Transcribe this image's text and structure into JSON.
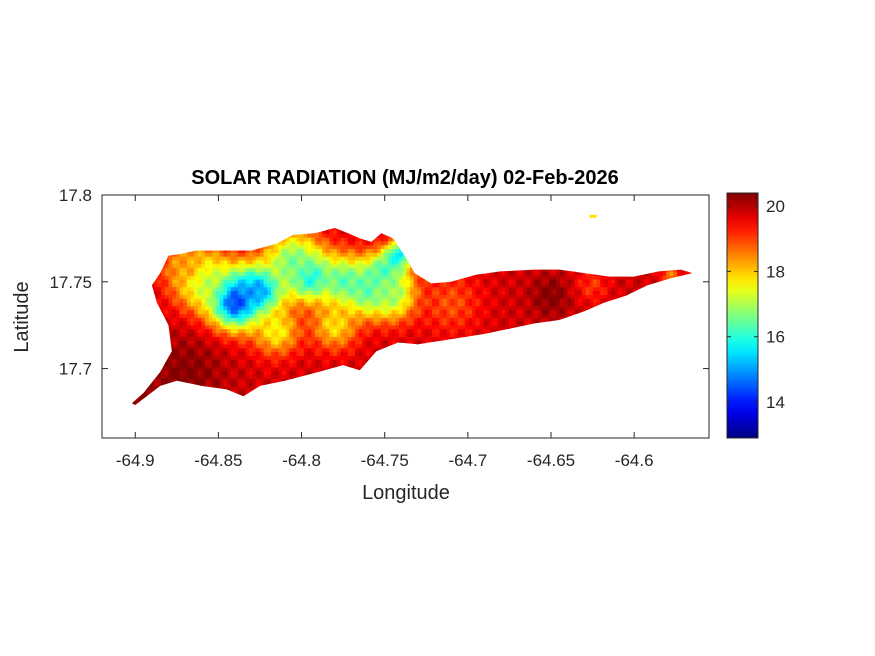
{
  "chart_data": {
    "type": "heatmap",
    "title": "SOLAR RADIATION (MJ/m2/day) 02-Feb-2026",
    "xlabel": "Longitude",
    "ylabel": "Latitude",
    "xlim": [
      -64.92,
      -64.555
    ],
    "ylim": [
      17.66,
      17.8
    ],
    "xticks": [
      -64.9,
      -64.85,
      -64.8,
      -64.75,
      -64.7,
      -64.65,
      -64.6
    ],
    "xtick_labels": [
      "-64.9",
      "-64.85",
      "-64.8",
      "-64.75",
      "-64.7",
      "-64.65",
      "-64.6"
    ],
    "yticks": [
      17.7,
      17.75,
      17.8
    ],
    "ytick_labels": [
      "17.7",
      "17.75",
      "17.8"
    ],
    "colorbar": {
      "colormap": "jet",
      "clim": [
        12.9,
        20.4
      ],
      "ticks": [
        14,
        16,
        18,
        20
      ],
      "tick_labels": [
        "14",
        "16",
        "18",
        "20"
      ]
    },
    "grid": false,
    "island_outline": [
      [
        -64.9,
        17.679
      ],
      [
        -64.885,
        17.69
      ],
      [
        -64.875,
        17.693
      ],
      [
        -64.86,
        17.69
      ],
      [
        -64.845,
        17.688
      ],
      [
        -64.835,
        17.684
      ],
      [
        -64.825,
        17.69
      ],
      [
        -64.81,
        17.693
      ],
      [
        -64.79,
        17.698
      ],
      [
        -64.775,
        17.702
      ],
      [
        -64.765,
        17.699
      ],
      [
        -64.755,
        17.71
      ],
      [
        -64.742,
        17.715
      ],
      [
        -64.73,
        17.714
      ],
      [
        -64.71,
        17.717
      ],
      [
        -64.69,
        17.72
      ],
      [
        -64.675,
        17.723
      ],
      [
        -64.66,
        17.726
      ],
      [
        -64.645,
        17.728
      ],
      [
        -64.63,
        17.733
      ],
      [
        -64.618,
        17.738
      ],
      [
        -64.605,
        17.742
      ],
      [
        -64.592,
        17.748
      ],
      [
        -64.578,
        17.752
      ],
      [
        -64.565,
        17.755
      ],
      [
        -64.572,
        17.757
      ],
      [
        -64.585,
        17.756
      ],
      [
        -64.6,
        17.753
      ],
      [
        -64.615,
        17.753
      ],
      [
        -64.63,
        17.755
      ],
      [
        -64.645,
        17.757
      ],
      [
        -64.66,
        17.757
      ],
      [
        -64.68,
        17.756
      ],
      [
        -64.695,
        17.754
      ],
      [
        -64.71,
        17.75
      ],
      [
        -64.722,
        17.749
      ],
      [
        -64.732,
        17.755
      ],
      [
        -64.738,
        17.765
      ],
      [
        -64.745,
        17.775
      ],
      [
        -64.752,
        17.778
      ],
      [
        -64.758,
        17.773
      ],
      [
        -64.765,
        17.775
      ],
      [
        -64.772,
        17.778
      ],
      [
        -64.78,
        17.781
      ],
      [
        -64.792,
        17.778
      ],
      [
        -64.805,
        17.777
      ],
      [
        -64.815,
        17.772
      ],
      [
        -64.83,
        17.768
      ],
      [
        -64.848,
        17.768
      ],
      [
        -64.863,
        17.768
      ],
      [
        -64.873,
        17.766
      ],
      [
        -64.88,
        17.765
      ],
      [
        -64.885,
        17.755
      ],
      [
        -64.89,
        17.748
      ],
      [
        -64.887,
        17.738
      ],
      [
        -64.88,
        17.725
      ],
      [
        -64.878,
        17.71
      ],
      [
        -64.885,
        17.698
      ],
      [
        -64.895,
        17.686
      ],
      [
        -64.902,
        17.68
      ]
    ],
    "field": {
      "base_value": 19.8,
      "features": [
        {
          "lon": -64.84,
          "lat": 17.74,
          "value": 13.3,
          "spread": 0.016
        },
        {
          "lon": -64.825,
          "lat": 17.745,
          "value": 14.6,
          "spread": 0.014
        },
        {
          "lon": -64.795,
          "lat": 17.753,
          "value": 14.9,
          "spread": 0.012
        },
        {
          "lon": -64.805,
          "lat": 17.762,
          "value": 16.6,
          "spread": 0.018
        },
        {
          "lon": -64.775,
          "lat": 17.75,
          "value": 16.3,
          "spread": 0.016
        },
        {
          "lon": -64.76,
          "lat": 17.745,
          "value": 16.2,
          "spread": 0.013
        },
        {
          "lon": -64.75,
          "lat": 17.755,
          "value": 15.9,
          "spread": 0.012
        },
        {
          "lon": -64.742,
          "lat": 17.765,
          "value": 15.4,
          "spread": 0.008
        },
        {
          "lon": -64.745,
          "lat": 17.743,
          "value": 16.8,
          "spread": 0.015
        },
        {
          "lon": -64.86,
          "lat": 17.752,
          "value": 16.9,
          "spread": 0.018
        },
        {
          "lon": -64.815,
          "lat": 17.722,
          "value": 17.6,
          "spread": 0.014
        },
        {
          "lon": -64.78,
          "lat": 17.725,
          "value": 17.8,
          "spread": 0.014
        },
        {
          "lon": -64.87,
          "lat": 17.76,
          "value": 18.3,
          "spread": 0.012
        },
        {
          "lon": -64.71,
          "lat": 17.738,
          "value": 18.9,
          "spread": 0.018
        },
        {
          "lon": -64.65,
          "lat": 17.742,
          "value": 20.4,
          "spread": 0.012
        },
        {
          "lon": -64.87,
          "lat": 17.697,
          "value": 20.4,
          "spread": 0.022
        },
        {
          "lon": -64.895,
          "lat": 17.685,
          "value": 20.4,
          "spread": 0.01
        },
        {
          "lon": -64.625,
          "lat": 17.748,
          "value": 19.1,
          "spread": 0.01
        },
        {
          "lon": -64.6,
          "lat": 17.752,
          "value": 19.8,
          "spread": 0.01
        },
        {
          "lon": -64.578,
          "lat": 17.754,
          "value": 18.6,
          "spread": 0.006
        }
      ]
    },
    "islet": {
      "lon": -64.625,
      "lat": 17.788,
      "value": 17.8
    }
  }
}
